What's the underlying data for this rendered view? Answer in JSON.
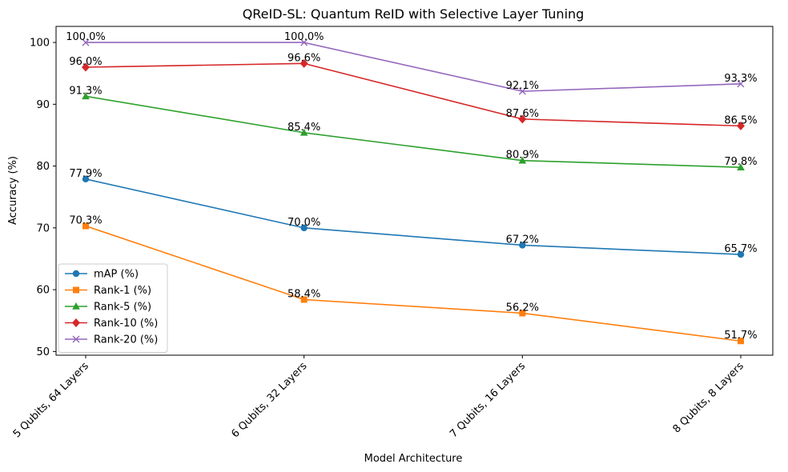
{
  "chart_data": {
    "type": "line",
    "title": "QReID-SL: Quantum ReID with Selective Layer Tuning",
    "xlabel": "Model Architecture",
    "ylabel": "Accuracy (%)",
    "categories": [
      "5 Qubits, 64 Layers",
      "6 Qubits, 32 Layers",
      "7 Qubits, 16 Layers",
      "8 Qubits, 8 Layers"
    ],
    "ylim": [
      49.4,
      102.6
    ],
    "yticks": [
      50,
      60,
      70,
      80,
      90,
      100
    ],
    "grid": false,
    "legend_position": "lower-left",
    "series": [
      {
        "name": "mAP (%)",
        "values": [
          77.9,
          70.0,
          67.2,
          65.7
        ],
        "labels": [
          "77.9%",
          "70.0%",
          "67.2%",
          "65.7%"
        ],
        "color": "#1f77b4",
        "marker": "circle"
      },
      {
        "name": "Rank-1 (%)",
        "values": [
          70.3,
          58.4,
          56.2,
          51.7
        ],
        "labels": [
          "70.3%",
          "58.4%",
          "56.2%",
          "51.7%"
        ],
        "color": "#ff7f0e",
        "marker": "square"
      },
      {
        "name": "Rank-5 (%)",
        "values": [
          91.3,
          85.4,
          80.9,
          79.8
        ],
        "labels": [
          "91.3%",
          "85.4%",
          "80.9%",
          "79.8%"
        ],
        "color": "#2ca02c",
        "marker": "triangle"
      },
      {
        "name": "Rank-10 (%)",
        "values": [
          96.0,
          96.6,
          87.6,
          86.5
        ],
        "labels": [
          "96.0%",
          "96.6%",
          "87.6%",
          "86.5%"
        ],
        "color": "#d62728",
        "marker": "diamond"
      },
      {
        "name": "Rank-20 (%)",
        "values": [
          100.0,
          100.0,
          92.1,
          93.3
        ],
        "labels": [
          "100.0%",
          "100.0%",
          "92.1%",
          "93.3%"
        ],
        "color": "#9467bd",
        "marker": "x"
      }
    ]
  }
}
